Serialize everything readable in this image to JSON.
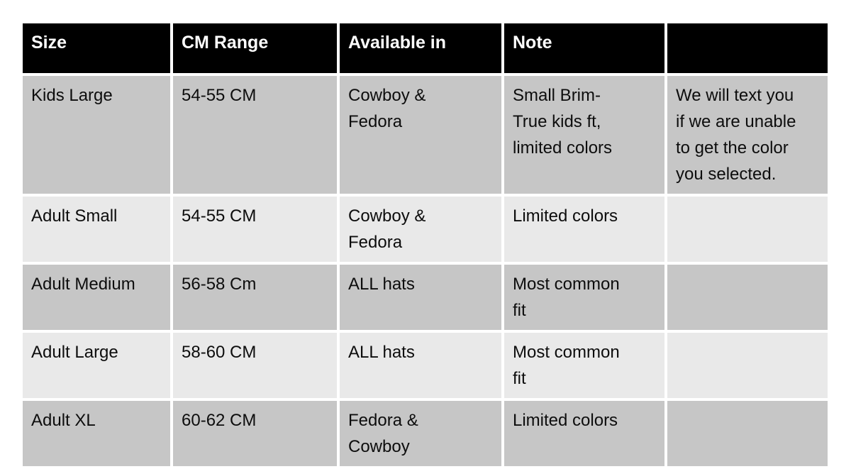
{
  "colors": {
    "header-bg": "#000000",
    "header-text": "#ffffff",
    "row-dark": "#c6c6c6",
    "row-light": "#e9e9e9",
    "gap": "#ffffff",
    "cell-text": "#0d0d0d"
  },
  "table": {
    "columns": [
      "Size",
      "CM Range",
      "Available in",
      "Note",
      ""
    ],
    "rows": [
      {
        "size": "Kids Large",
        "cm_range": "54-55 CM",
        "available_in": "Cowboy &\nFedora",
        "note": "Small Brim-\nTrue kids ft,\nlimited colors",
        "extra": "We will text you\nif we are unable\nto get the color\nyou selected."
      },
      {
        "size": "Adult Small",
        "cm_range": "54-55 CM",
        "available_in": "Cowboy &\nFedora",
        "note": "Limited colors",
        "extra": ""
      },
      {
        "size": "Adult Medium",
        "cm_range": "56-58 Cm",
        "available_in": "ALL hats",
        "note": "Most common\nfit",
        "extra": ""
      },
      {
        "size": "Adult Large",
        "cm_range": "58-60 CM",
        "available_in": "ALL hats",
        "note": "Most common\nfit",
        "extra": ""
      },
      {
        "size": "Adult XL",
        "cm_range": "60-62 CM",
        "available_in": "Fedora &\nCowboy",
        "note": "Limited colors",
        "extra": ""
      }
    ]
  }
}
